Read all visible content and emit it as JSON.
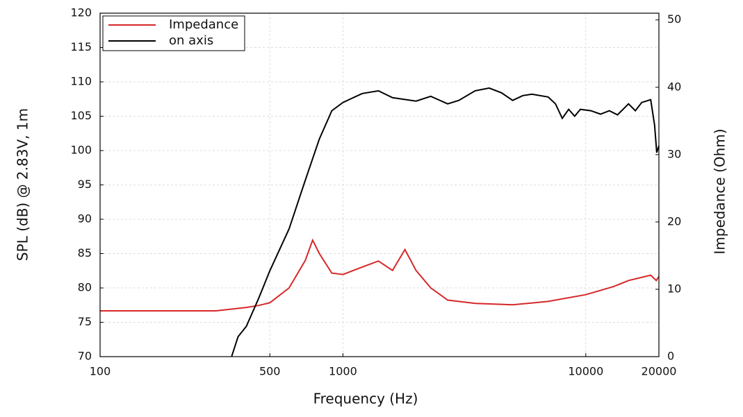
{
  "chart_data": {
    "type": "line",
    "x_label": "Frequency (Hz)",
    "y_label": "SPL (dB) @ 2.83V, 1m",
    "y2_label": "Impedance (Ohm)",
    "xlog": true,
    "grid": true,
    "legend": "upper left",
    "xlim": [
      100,
      20000
    ],
    "xticks": [
      100,
      500,
      1000,
      10000,
      20000
    ],
    "ylim": [
      70,
      120
    ],
    "yticks": [
      70,
      75,
      80,
      85,
      90,
      95,
      100,
      105,
      110,
      115,
      120
    ],
    "y2lim": [
      0,
      51
    ],
    "y2ticks": [
      0,
      10,
      20,
      30,
      40,
      50
    ],
    "series": [
      {
        "name": "Impedance",
        "color": "#d62728",
        "axis": "y2",
        "x": [
          100,
          300,
          400,
          450,
          500,
          600,
          700,
          750,
          800,
          900,
          1000,
          1200,
          1400,
          1600,
          1800,
          2000,
          2300,
          2700,
          3500,
          5000,
          7000,
          10000,
          13000,
          15000,
          18500,
          19500,
          20000
        ],
        "values": [
          6.8,
          6.8,
          7.3,
          7.6,
          8.0,
          10.2,
          14.3,
          17.3,
          15.3,
          12.4,
          12.2,
          13.3,
          14.2,
          12.8,
          15.9,
          12.8,
          10.2,
          8.4,
          7.9,
          7.7,
          8.2,
          9.2,
          10.4,
          11.3,
          12.1,
          11.3,
          11.9
        ]
      },
      {
        "name": "on axis",
        "color": "#000000",
        "axis": "y",
        "x": [
          348,
          370,
          400,
          450,
          500,
          600,
          700,
          800,
          900,
          1000,
          1200,
          1400,
          1600,
          2000,
          2300,
          2700,
          3000,
          3500,
          4000,
          4500,
          5000,
          5500,
          6000,
          7000,
          7500,
          8000,
          8500,
          9000,
          9500,
          10500,
          11500,
          12500,
          13500,
          15000,
          16000,
          17000,
          18500,
          19200,
          19600,
          20000
        ],
        "values": [
          70,
          72.9,
          74.4,
          78.5,
          82.5,
          88.6,
          95.7,
          101.7,
          105.8,
          107,
          108.3,
          108.7,
          107.7,
          107.2,
          107.9,
          106.8,
          107.3,
          108.7,
          109.1,
          108.4,
          107.3,
          108,
          108.2,
          107.8,
          106.8,
          104.7,
          106,
          105,
          106,
          105.8,
          105.3,
          105.8,
          105.2,
          106.8,
          105.8,
          107,
          107.4,
          103.7,
          99.7,
          100.7
        ]
      }
    ]
  }
}
